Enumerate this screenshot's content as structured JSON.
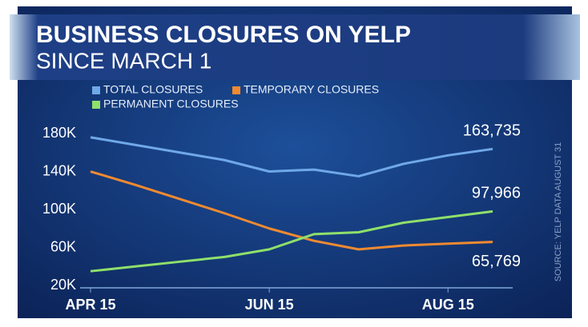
{
  "chart_data": {
    "type": "line",
    "title": "BUSINESS CLOSURES ON YELP",
    "subtitle": "SINCE MARCH 1",
    "source": "SOURCE: YELP DATA AUGUST 31",
    "categories": [
      "APR 15",
      null,
      null,
      null,
      "JUN 15",
      null,
      null,
      null,
      "AUG 15",
      null
    ],
    "series": [
      {
        "name": "TOTAL CLOSURES",
        "color": "#6fa8e8",
        "values": [
          176000,
          168000,
          160000,
          152000,
          140000,
          142000,
          135000,
          148000,
          157000,
          163735
        ],
        "value_labels": [
          null,
          null,
          null,
          null,
          null,
          null,
          null,
          null,
          null,
          "163,735"
        ]
      },
      {
        "name": "TEMPORARY CLOSURES",
        "color": "#f08a30",
        "values": [
          140000,
          126000,
          111000,
          96000,
          80000,
          67000,
          58000,
          62000,
          64000,
          65769
        ],
        "value_labels": [
          null,
          null,
          null,
          null,
          null,
          null,
          null,
          null,
          null,
          "65,769"
        ]
      },
      {
        "name": "PERMANENT CLOSURES",
        "color": "#8fe06a",
        "values": [
          35000,
          40000,
          45000,
          50000,
          58000,
          74000,
          76000,
          86000,
          92000,
          97966
        ],
        "value_labels": [
          null,
          null,
          null,
          null,
          null,
          null,
          null,
          null,
          null,
          "97,966"
        ]
      }
    ],
    "ylim": [
      20000,
      180000
    ],
    "yticks": [
      {
        "value": 180000,
        "label": "180K"
      },
      {
        "value": 140000,
        "label": "140K"
      },
      {
        "value": 100000,
        "label": "100K"
      },
      {
        "value": 60000,
        "label": "60K"
      },
      {
        "value": 20000,
        "label": "20K"
      }
    ],
    "grid": false,
    "legend": "top-left"
  }
}
